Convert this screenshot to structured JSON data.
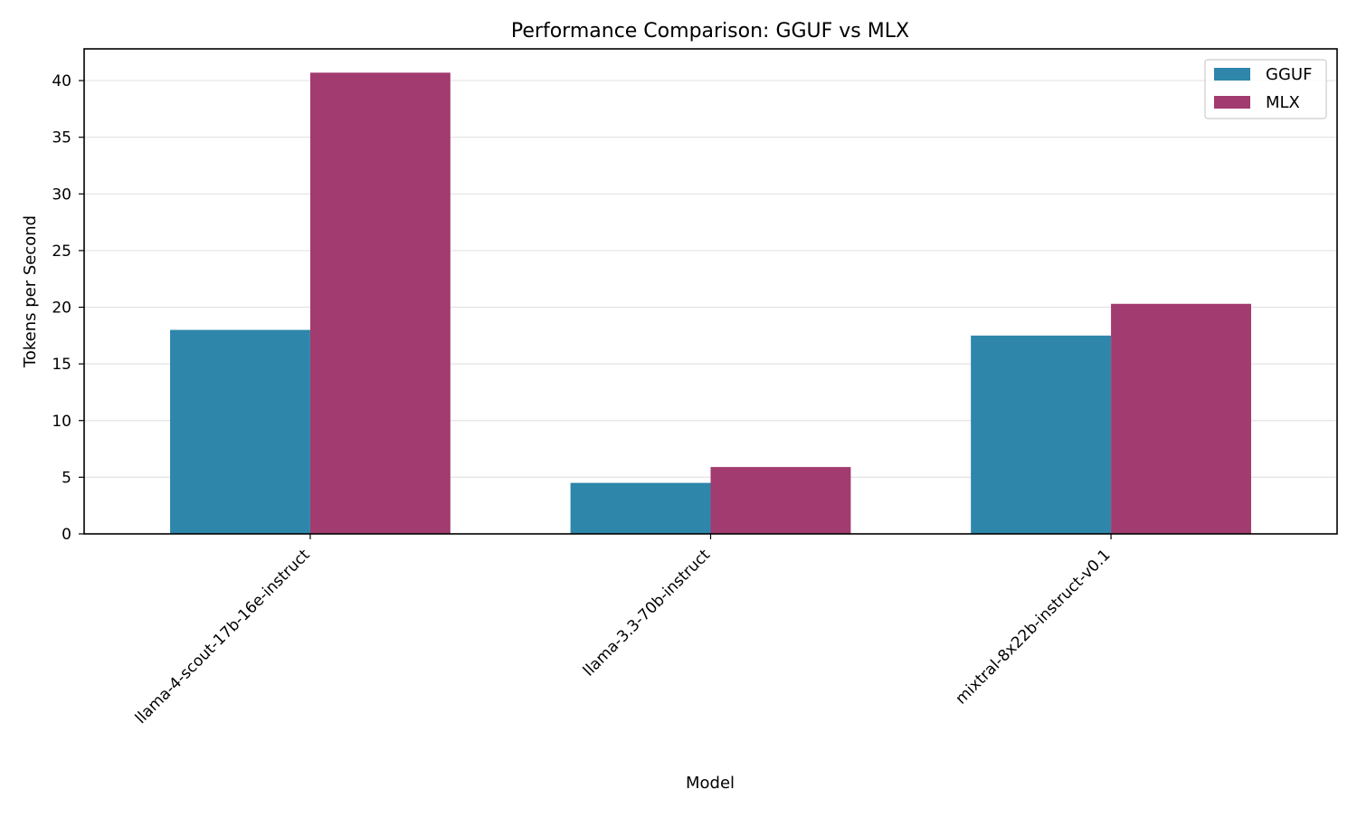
{
  "chart_data": {
    "type": "bar",
    "title": "Performance Comparison: GGUF vs MLX",
    "xlabel": "Model",
    "ylabel": "Tokens per Second",
    "categories": [
      "llama-4-scout-17b-16e-instruct",
      "llama-3.3-70b-instruct",
      "mixtral-8x22b-instruct-v0.1"
    ],
    "series": [
      {
        "name": "GGUF",
        "values": [
          18.0,
          4.5,
          17.5
        ],
        "color": "#2e86ab"
      },
      {
        "name": "MLX",
        "values": [
          40.7,
          5.9,
          20.3
        ],
        "color": "#a23b6f"
      }
    ],
    "ylim": [
      0,
      42.8
    ],
    "yticks": [
      0,
      5,
      10,
      15,
      20,
      25,
      30,
      35,
      40
    ],
    "grid": "horizontal",
    "legend_position": "top-right"
  }
}
